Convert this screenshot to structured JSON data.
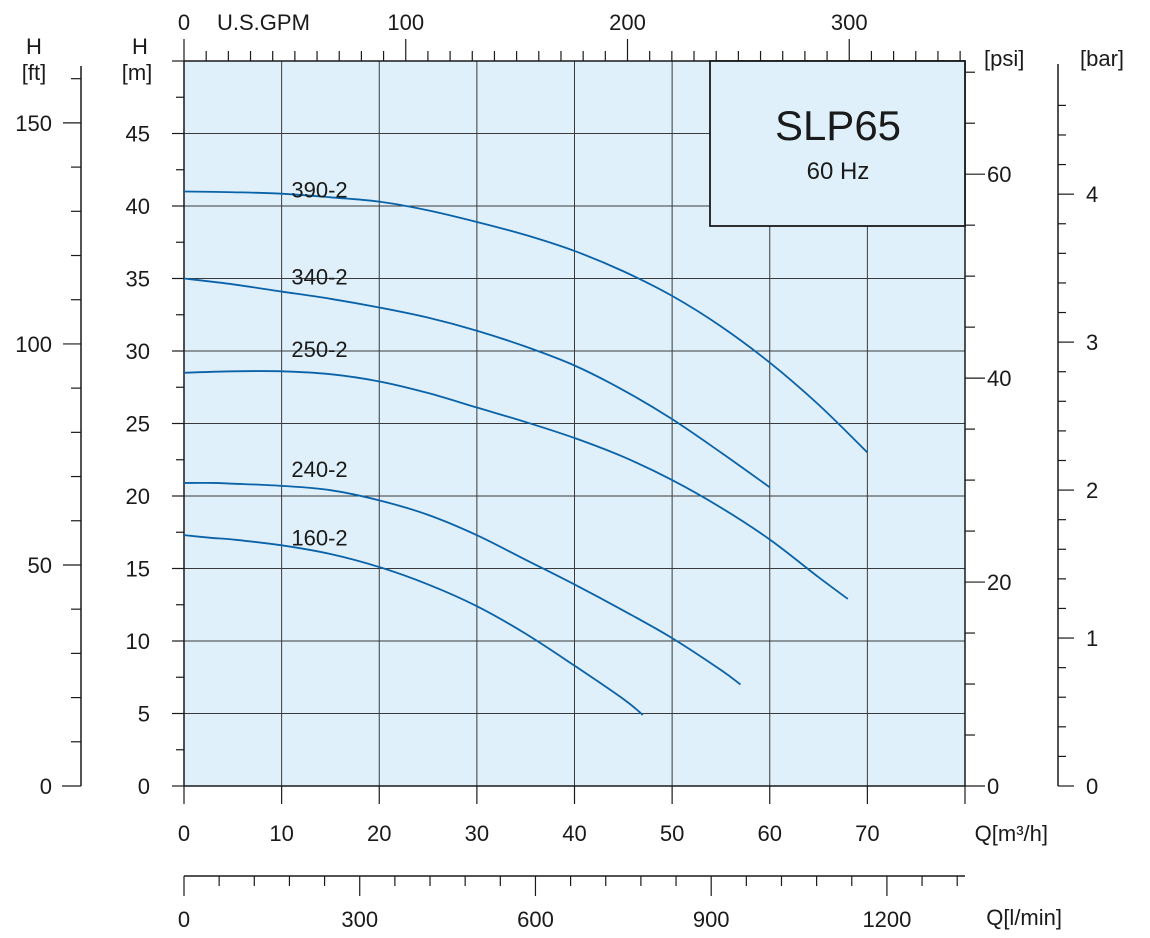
{
  "chart_data": {
    "type": "line",
    "title": "SLP65",
    "subtitle": "60 Hz",
    "background_color": "#dff0fa",
    "curve_color": "#0a62a8",
    "grid": true,
    "title_box_placement": "top-right",
    "x_axes": {
      "primary": {
        "label": "Q[m³/h]",
        "range": [
          0,
          80
        ],
        "ticks": [
          "0",
          "10",
          "20",
          "30",
          "40",
          "50",
          "60",
          "70"
        ]
      },
      "lpm": {
        "label": "Q[l/min]",
        "range": [
          0,
          1333.3
        ],
        "ticks": [
          "0",
          "300",
          "600",
          "900",
          "1200"
        ]
      },
      "gpm": {
        "label": "U.S.GPM",
        "range": [
          0,
          352.2
        ],
        "ticks": [
          "0",
          "100",
          "200",
          "300"
        ]
      }
    },
    "y_axes": {
      "m": {
        "label_top": "H",
        "label_bottom": "[m]",
        "range": [
          0,
          50
        ],
        "ticks": [
          "0",
          "5",
          "10",
          "15",
          "20",
          "25",
          "30",
          "35",
          "40",
          "45"
        ]
      },
      "ft": {
        "label_top": "H",
        "label_bottom": "[ft]",
        "range": [
          0,
          164
        ],
        "ticks": [
          "0",
          "50",
          "100",
          "150"
        ]
      },
      "psi": {
        "label": "[psi]",
        "range": [
          0,
          71.1
        ],
        "ticks": [
          "0",
          "20",
          "40",
          "60"
        ]
      },
      "bar": {
        "label": "[bar]",
        "range": [
          0,
          4.9
        ],
        "ticks": [
          "0",
          "1",
          "2",
          "3",
          "4"
        ]
      }
    },
    "series": [
      {
        "name": "390-2",
        "label_at": [
          11,
          40.6
        ],
        "x": [
          0,
          5,
          10,
          15,
          20,
          25,
          30,
          35,
          40,
          45,
          50,
          55,
          60,
          65,
          70
        ],
        "y": [
          41.0,
          40.95,
          40.85,
          40.6,
          40.3,
          39.7,
          38.9,
          38.0,
          36.9,
          35.5,
          33.8,
          31.7,
          29.2,
          26.3,
          23.0
        ]
      },
      {
        "name": "340-2",
        "label_at": [
          11,
          34.6
        ],
        "x": [
          0,
          5,
          10,
          15,
          20,
          25,
          30,
          35,
          40,
          45,
          50,
          55,
          60
        ],
        "y": [
          35.0,
          34.6,
          34.1,
          33.6,
          33.0,
          32.3,
          31.4,
          30.3,
          29.0,
          27.3,
          25.3,
          23.0,
          20.6
        ]
      },
      {
        "name": "250-2",
        "label_at": [
          11,
          29.6
        ],
        "x": [
          0,
          5,
          10,
          15,
          20,
          25,
          30,
          35,
          40,
          45,
          50,
          55,
          60,
          65,
          68
        ],
        "y": [
          28.5,
          28.6,
          28.6,
          28.4,
          27.9,
          27.1,
          26.1,
          25.1,
          24.0,
          22.7,
          21.1,
          19.2,
          17.0,
          14.4,
          12.9
        ]
      },
      {
        "name": "240-2",
        "label_at": [
          11,
          21.3
        ],
        "x": [
          0,
          3,
          5,
          10,
          15,
          20,
          25,
          30,
          35,
          40,
          45,
          50,
          55,
          57
        ],
        "y": [
          20.9,
          20.9,
          20.85,
          20.7,
          20.4,
          19.7,
          18.7,
          17.3,
          15.6,
          13.9,
          12.1,
          10.2,
          8.0,
          7.0
        ]
      },
      {
        "name": "160-2",
        "label_at": [
          11,
          16.6
        ],
        "x": [
          0,
          3,
          5,
          10,
          15,
          20,
          25,
          30,
          35,
          40,
          45,
          47
        ],
        "y": [
          17.3,
          17.1,
          17.0,
          16.6,
          16.0,
          15.1,
          13.9,
          12.4,
          10.5,
          8.3,
          6.0,
          4.9
        ]
      }
    ]
  }
}
